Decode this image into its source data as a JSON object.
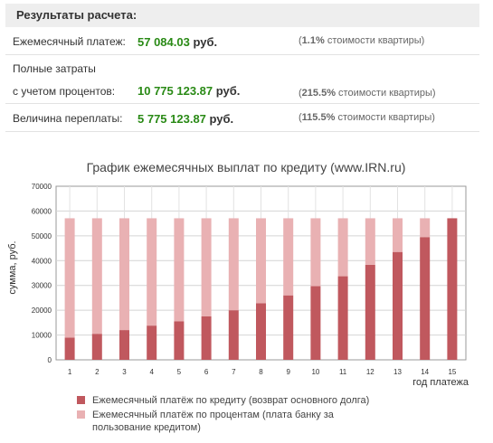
{
  "results": {
    "header": "Результаты расчета:",
    "monthly": {
      "label": "Ежемесячный платеж:",
      "value": "57 084.03",
      "currency": "руб.",
      "note_open": "(",
      "note_pct": "1.1%",
      "note_text": "стоимости квартиры)"
    },
    "total": {
      "label_line1": "Полные затраты",
      "label_line2": "с учетом процентов:",
      "value": "10 775 123.87",
      "currency": "руб.",
      "note_open": "(",
      "note_pct": "215.5%",
      "note_text": "стоимости квартиры)"
    },
    "overpay": {
      "label": "Величина переплаты:",
      "value": "5 775 123.87",
      "currency": "руб.",
      "note_open": "(",
      "note_pct": "115.5%",
      "note_text": "стоимости квартиры)"
    }
  },
  "chart_data": {
    "type": "bar",
    "stacked": true,
    "title": "График ежемесячных выплат по кредиту (www.IRN.ru)",
    "xlabel": "год платежа",
    "ylabel": "сумма, руб.",
    "ylim": [
      0,
      70000
    ],
    "yticks": [
      0,
      10000,
      20000,
      30000,
      40000,
      50000,
      60000,
      70000
    ],
    "categories": [
      "1",
      "2",
      "3",
      "4",
      "5",
      "6",
      "7",
      "8",
      "9",
      "10",
      "11",
      "12",
      "13",
      "14",
      "15"
    ],
    "series": [
      {
        "name": "Ежемесячный платёж по кредиту (возврат основного долга)",
        "color": "#c0585e",
        "values": [
          9000,
          10500,
          12000,
          13800,
          15500,
          17500,
          20000,
          22800,
          26000,
          29700,
          33700,
          38300,
          43500,
          49500,
          57084
        ]
      },
      {
        "name": "Ежемесячный платёж по процентам (плата банку за пользование кредитом)",
        "color": "#e9b1b3",
        "values": [
          48084,
          46584,
          45084,
          43284,
          41584,
          39584,
          37084,
          34284,
          31084,
          27384,
          23384,
          18784,
          13584,
          7584,
          0
        ]
      }
    ],
    "grid": true,
    "legend_position": "bottom"
  }
}
